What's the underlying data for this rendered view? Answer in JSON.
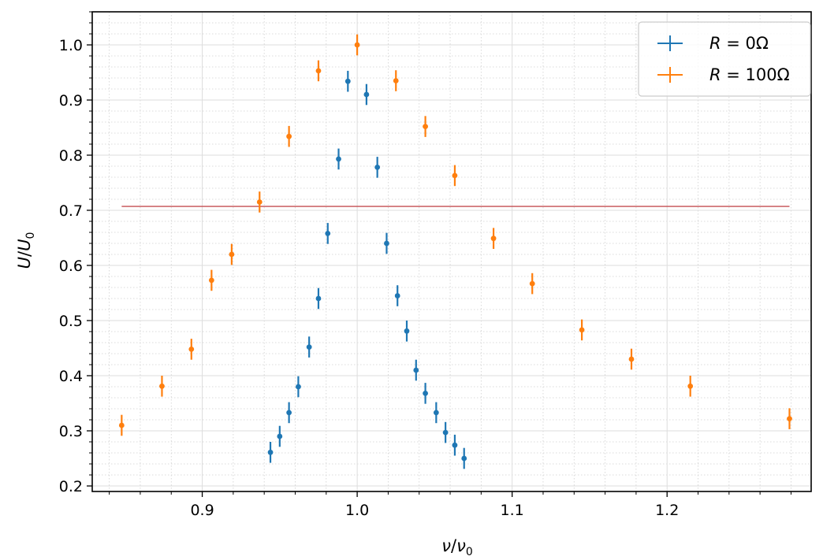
{
  "chart_data": {
    "type": "scatter",
    "xlabel": "ν/ν₀",
    "ylabel": "U/U₀",
    "xlim": [
      0.829,
      1.293
    ],
    "ylim": [
      0.19,
      1.06
    ],
    "x_ticks": [
      0.9,
      1.0,
      1.1,
      1.2
    ],
    "x_tick_labels": [
      "0.9",
      "1.0",
      "1.1",
      "1.2"
    ],
    "y_ticks": [
      0.2,
      0.3,
      0.4,
      0.5,
      0.6,
      0.7,
      0.8,
      0.9,
      1.0
    ],
    "y_tick_labels": [
      "0.2",
      "0.3",
      "0.4",
      "0.5",
      "0.6",
      "0.7",
      "0.8",
      "0.9",
      "1.0"
    ],
    "grid": true,
    "minor_grid": true,
    "legend_position": "top-right",
    "reference_line": {
      "y": 0.707,
      "x_range": [
        0.848,
        1.279
      ],
      "color": "#c44e52"
    },
    "series": [
      {
        "name": "R = 0Ω",
        "legend_plain": "R = 0Ω",
        "color": "#1f77b4",
        "points": [
          {
            "x": 0.944,
            "y": 0.261,
            "yerr": 0.019
          },
          {
            "x": 0.95,
            "y": 0.29,
            "yerr": 0.019
          },
          {
            "x": 0.956,
            "y": 0.333,
            "yerr": 0.019
          },
          {
            "x": 0.962,
            "y": 0.38,
            "yerr": 0.019
          },
          {
            "x": 0.969,
            "y": 0.452,
            "yerr": 0.019
          },
          {
            "x": 0.975,
            "y": 0.54,
            "yerr": 0.019
          },
          {
            "x": 0.981,
            "y": 0.658,
            "yerr": 0.019
          },
          {
            "x": 0.988,
            "y": 0.793,
            "yerr": 0.019
          },
          {
            "x": 0.994,
            "y": 0.934,
            "yerr": 0.019
          },
          {
            "x": 1.006,
            "y": 0.91,
            "yerr": 0.019
          },
          {
            "x": 1.013,
            "y": 0.778,
            "yerr": 0.019
          },
          {
            "x": 1.019,
            "y": 0.64,
            "yerr": 0.019
          },
          {
            "x": 1.026,
            "y": 0.545,
            "yerr": 0.019
          },
          {
            "x": 1.032,
            "y": 0.481,
            "yerr": 0.019
          },
          {
            "x": 1.038,
            "y": 0.41,
            "yerr": 0.019
          },
          {
            "x": 1.044,
            "y": 0.368,
            "yerr": 0.019
          },
          {
            "x": 1.051,
            "y": 0.333,
            "yerr": 0.019
          },
          {
            "x": 1.057,
            "y": 0.297,
            "yerr": 0.019
          },
          {
            "x": 1.063,
            "y": 0.274,
            "yerr": 0.019
          },
          {
            "x": 1.069,
            "y": 0.25,
            "yerr": 0.019
          }
        ]
      },
      {
        "name": "R = 100Ω",
        "legend_plain": "R = 100Ω",
        "color": "#ff7f0e",
        "points": [
          {
            "x": 0.848,
            "y": 0.31,
            "yerr": 0.019
          },
          {
            "x": 0.874,
            "y": 0.381,
            "yerr": 0.019
          },
          {
            "x": 0.893,
            "y": 0.448,
            "yerr": 0.019
          },
          {
            "x": 0.906,
            "y": 0.573,
            "yerr": 0.019
          },
          {
            "x": 0.919,
            "y": 0.62,
            "yerr": 0.019
          },
          {
            "x": 0.937,
            "y": 0.715,
            "yerr": 0.019
          },
          {
            "x": 0.956,
            "y": 0.834,
            "yerr": 0.019
          },
          {
            "x": 0.975,
            "y": 0.953,
            "yerr": 0.019
          },
          {
            "x": 1.0,
            "y": 1.0,
            "yerr": 0.019
          },
          {
            "x": 1.025,
            "y": 0.935,
            "yerr": 0.019
          },
          {
            "x": 1.044,
            "y": 0.852,
            "yerr": 0.019
          },
          {
            "x": 1.063,
            "y": 0.763,
            "yerr": 0.019
          },
          {
            "x": 1.088,
            "y": 0.649,
            "yerr": 0.019
          },
          {
            "x": 1.113,
            "y": 0.567,
            "yerr": 0.019
          },
          {
            "x": 1.145,
            "y": 0.483,
            "yerr": 0.019
          },
          {
            "x": 1.177,
            "y": 0.43,
            "yerr": 0.019
          },
          {
            "x": 1.215,
            "y": 0.381,
            "yerr": 0.019
          },
          {
            "x": 1.279,
            "y": 0.322,
            "yerr": 0.019
          }
        ]
      }
    ]
  }
}
